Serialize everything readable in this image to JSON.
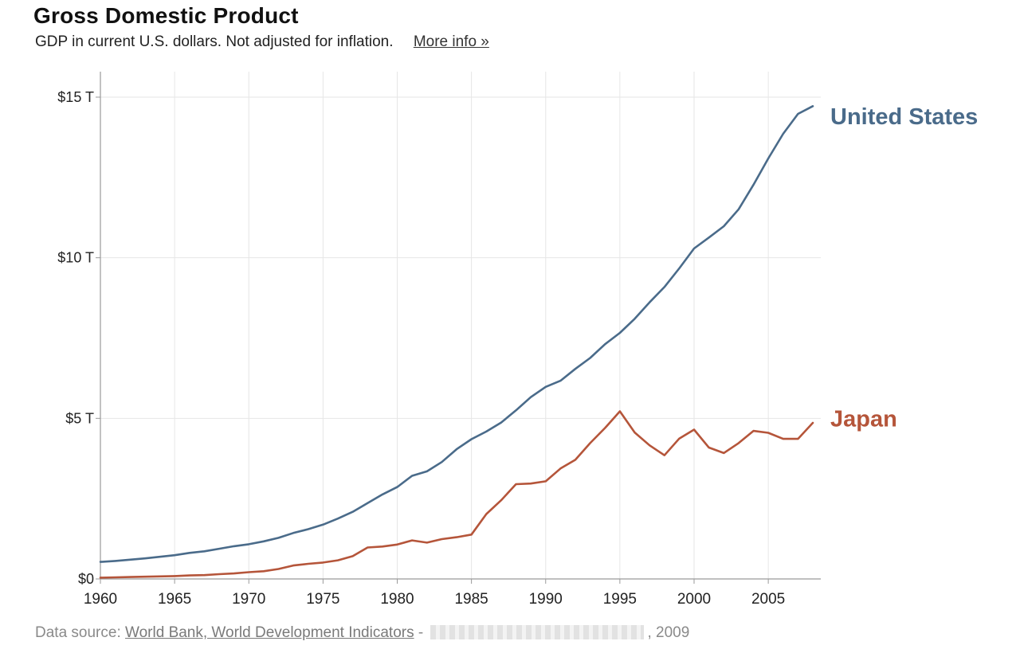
{
  "header": {
    "title": "Gross Domestic Product",
    "subtitle": "GDP in current U.S. dollars. Not adjusted for inflation.",
    "more_info": "More info »"
  },
  "footer": {
    "prefix": "Data source:",
    "source_link": "World Bank, World Development Indicators",
    "separator": "-",
    "year_suffix": ", 2009"
  },
  "colors": {
    "united_states": "#4a6b8a",
    "japan": "#b5553a",
    "grid": "#e6e6e6",
    "axis": "#9a9a9a"
  },
  "chart_data": {
    "type": "line",
    "title": "Gross Domestic Product",
    "subtitle": "GDP in current U.S. dollars. Not adjusted for inflation.",
    "xlabel": "",
    "ylabel": "",
    "xlim": [
      1960,
      2008
    ],
    "ylim": [
      0,
      15
    ],
    "y_unit": "trillion US dollars",
    "grid": true,
    "legend": "end-of-line labels",
    "x_ticks": [
      1960,
      1965,
      1970,
      1975,
      1980,
      1985,
      1990,
      1995,
      2000,
      2005
    ],
    "x_tick_labels": [
      "1960",
      "1965",
      "1970",
      "1975",
      "1980",
      "1985",
      "1990",
      "1995",
      "2000",
      "2005"
    ],
    "y_ticks": [
      0,
      5,
      10,
      15
    ],
    "y_tick_labels": [
      "$0",
      "$5 T",
      "$10 T",
      "$15 T"
    ],
    "x": [
      1960,
      1961,
      1962,
      1963,
      1964,
      1965,
      1966,
      1967,
      1968,
      1969,
      1970,
      1971,
      1972,
      1973,
      1974,
      1975,
      1976,
      1977,
      1978,
      1979,
      1980,
      1981,
      1982,
      1983,
      1984,
      1985,
      1986,
      1987,
      1988,
      1989,
      1990,
      1991,
      1992,
      1993,
      1994,
      1995,
      1996,
      1997,
      1998,
      1999,
      2000,
      2001,
      2002,
      2003,
      2004,
      2005,
      2006,
      2007,
      2008
    ],
    "series": [
      {
        "name": "United States",
        "values": [
          0.53,
          0.56,
          0.6,
          0.64,
          0.69,
          0.74,
          0.81,
          0.86,
          0.94,
          1.02,
          1.08,
          1.17,
          1.28,
          1.43,
          1.55,
          1.69,
          1.88,
          2.09,
          2.36,
          2.63,
          2.86,
          3.21,
          3.35,
          3.64,
          4.04,
          4.35,
          4.59,
          4.87,
          5.25,
          5.66,
          5.98,
          6.17,
          6.54,
          6.88,
          7.31,
          7.66,
          8.1,
          8.61,
          9.09,
          9.67,
          10.29,
          10.63,
          10.98,
          11.51,
          12.27,
          13.09,
          13.86,
          14.48,
          14.72
        ]
      },
      {
        "name": "Japan",
        "values": [
          0.04,
          0.05,
          0.06,
          0.07,
          0.08,
          0.09,
          0.11,
          0.12,
          0.15,
          0.17,
          0.21,
          0.24,
          0.31,
          0.42,
          0.47,
          0.51,
          0.58,
          0.71,
          0.98,
          1.01,
          1.07,
          1.2,
          1.13,
          1.24,
          1.3,
          1.38,
          2.02,
          2.45,
          2.95,
          2.97,
          3.04,
          3.44,
          3.71,
          4.23,
          4.7,
          5.22,
          4.56,
          4.16,
          3.85,
          4.37,
          4.65,
          4.09,
          3.92,
          4.23,
          4.61,
          4.55,
          4.36,
          4.36,
          4.86
        ]
      }
    ]
  }
}
